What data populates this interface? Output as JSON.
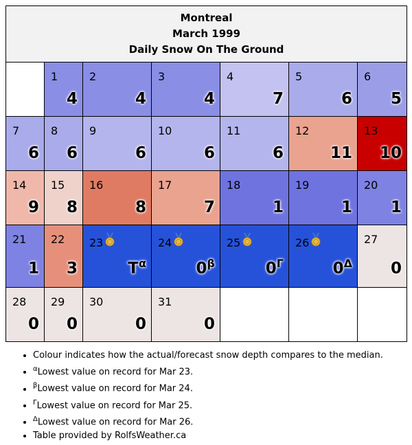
{
  "title": {
    "city": "Montreal",
    "month": "March 1999",
    "metric": "Daily Snow On The Ground"
  },
  "colors": {
    "heavy_blue": "#2652d9",
    "mid_blue": "#6e73e0",
    "light_blue": "#8a8ee5",
    "pale_blue": "#b3b5ec",
    "very_pale_blue": "#c3c2f0",
    "neutral": "#ede4e4",
    "pale_red": "#efcfc8",
    "light_red": "#f0b3a6",
    "salmon": "#eaa38f",
    "red": "#e07b63",
    "dark_red": "#c80000"
  },
  "rows": [
    [
      {
        "empty": true
      },
      {
        "day": "1",
        "value": "4",
        "color": "#8a8ee5"
      },
      {
        "day": "2",
        "value": "4",
        "color": "#8a8ee5"
      },
      {
        "day": "3",
        "value": "4",
        "color": "#8a8ee5"
      },
      {
        "day": "4",
        "value": "7",
        "color": "#c3c2f0"
      },
      {
        "day": "5",
        "value": "6",
        "color": "#a9abea"
      },
      {
        "day": "6",
        "value": "5",
        "color": "#9b9ee7"
      }
    ],
    [
      {
        "day": "7",
        "value": "6",
        "color": "#a9abea"
      },
      {
        "day": "8",
        "value": "6",
        "color": "#a9abea"
      },
      {
        "day": "9",
        "value": "6",
        "color": "#b3b5ec"
      },
      {
        "day": "10",
        "value": "6",
        "color": "#b3b5ec"
      },
      {
        "day": "11",
        "value": "6",
        "color": "#b3b5ec"
      },
      {
        "day": "12",
        "value": "11",
        "color": "#eaa38f"
      },
      {
        "day": "13",
        "value": "10",
        "color": "#c80000"
      }
    ],
    [
      {
        "day": "14",
        "value": "9",
        "color": "#f0b8aa"
      },
      {
        "day": "15",
        "value": "8",
        "color": "#efd2ca"
      },
      {
        "day": "16",
        "value": "8",
        "color": "#e07b63"
      },
      {
        "day": "17",
        "value": "7",
        "color": "#eaa38f"
      },
      {
        "day": "18",
        "value": "1",
        "color": "#6e73e0"
      },
      {
        "day": "19",
        "value": "1",
        "color": "#6e73e0"
      },
      {
        "day": "20",
        "value": "1",
        "color": "#7e82e2"
      }
    ],
    [
      {
        "day": "21",
        "value": "1",
        "color": "#7e82e2"
      },
      {
        "day": "22",
        "value": "3",
        "color": "#e6907c"
      },
      {
        "day": "23",
        "value": "T",
        "sup": "α",
        "medal": true,
        "color": "#2652d9"
      },
      {
        "day": "24",
        "value": "0",
        "sup": "β",
        "medal": true,
        "color": "#2652d9"
      },
      {
        "day": "25",
        "value": "0",
        "sup": "Γ",
        "medal": true,
        "color": "#2652d9"
      },
      {
        "day": "26",
        "value": "0",
        "sup": "Δ",
        "medal": true,
        "color": "#2652d9"
      },
      {
        "day": "27",
        "value": "0",
        "color": "#ede4e4"
      }
    ],
    [
      {
        "day": "28",
        "value": "0",
        "color": "#ede4e4"
      },
      {
        "day": "29",
        "value": "0",
        "color": "#ede4e4"
      },
      {
        "day": "30",
        "value": "0",
        "color": "#ede4e4"
      },
      {
        "day": "31",
        "value": "0",
        "color": "#ede4e4"
      },
      {
        "empty": true
      },
      {
        "empty": true
      },
      {
        "empty": true
      }
    ]
  ],
  "notes": [
    {
      "mark": "",
      "text": "Colour indicates how the actual/forecast snow depth compares to the median."
    },
    {
      "mark": "α",
      "text": "Lowest value on record for Mar 23."
    },
    {
      "mark": "β",
      "text": "Lowest value on record for Mar 24."
    },
    {
      "mark": "Γ",
      "text": "Lowest value on record for Mar 25."
    },
    {
      "mark": "Δ",
      "text": "Lowest value on record for Mar 26."
    },
    {
      "mark": "",
      "text": "Table provided by RolfsWeather.ca"
    }
  ],
  "medal_icon": "medal-icon"
}
